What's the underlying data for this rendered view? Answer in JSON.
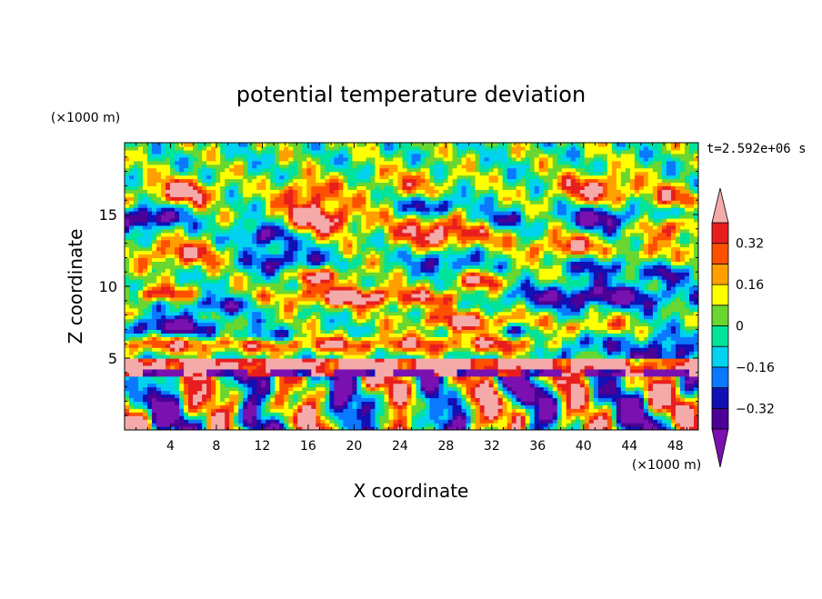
{
  "chart_data": {
    "type": "heatmap",
    "title": "potential temperature deviation",
    "xlabel": "X coordinate",
    "ylabel": "Z coordinate",
    "x_unit": "(×1000 m)",
    "y_unit": "(×1000 m)",
    "time_label": "t=2.592e+06 s",
    "xlim": [
      0,
      50
    ],
    "ylim": [
      0,
      20
    ],
    "x_ticks": [
      4,
      8,
      12,
      16,
      20,
      24,
      28,
      32,
      36,
      40,
      44,
      48
    ],
    "y_ticks": [
      5,
      10,
      15
    ],
    "x_tick_labels": [
      "4",
      "8",
      "12",
      "16",
      "20",
      "24",
      "28",
      "32",
      "36",
      "40",
      "44",
      "48"
    ],
    "y_tick_labels": [
      "5",
      "10",
      "15"
    ],
    "colorbar": {
      "levels": [
        -0.4,
        -0.32,
        -0.24,
        -0.16,
        -0.08,
        0,
        0.08,
        0.16,
        0.24,
        0.32,
        0.4
      ],
      "tick_values": [
        0.32,
        0.16,
        0,
        -0.16,
        -0.32
      ],
      "tick_labels": [
        "0.32",
        "0.16",
        "0",
        "−0.16",
        "−0.32"
      ],
      "colors": [
        "#7a10b0",
        "#4b0096",
        "#1010b4",
        "#0a78ff",
        "#00d2f0",
        "#00e39a",
        "#6ad630",
        "#ffff00",
        "#ffa000",
        "#ff5000",
        "#e81e1e",
        "#f5aaaa"
      ],
      "extend": "both"
    }
  }
}
